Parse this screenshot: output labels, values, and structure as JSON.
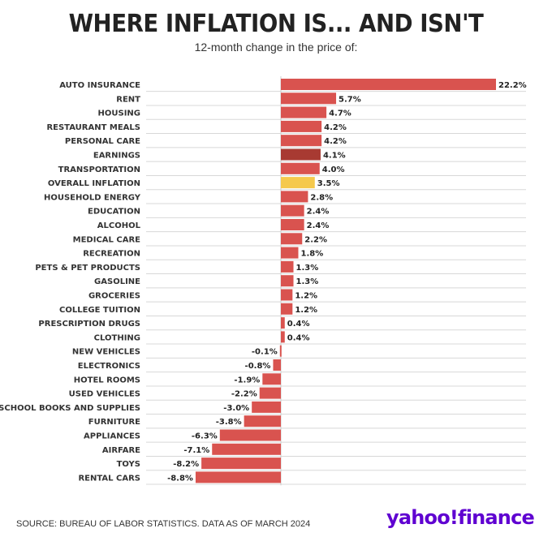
{
  "chart_data": {
    "type": "bar",
    "orientation": "horizontal",
    "title": "WHERE INFLATION IS... AND ISN'T",
    "subtitle": "12-month change in the price of:",
    "categories": [
      "AUTO INSURANCE",
      "RENT",
      "HOUSING",
      "RESTAURANT MEALS",
      "PERSONAL CARE",
      "EARNINGS",
      "TRANSPORTATION",
      "OVERALL INFLATION",
      "HOUSEHOLD ENERGY",
      "EDUCATION",
      "ALCOHOL",
      "MEDICAL CARE",
      "RECREATION",
      "PETS & PET PRODUCTS",
      "GASOLINE",
      "GROCERIES",
      "COLLEGE TUITION",
      "PRESCRIPTION DRUGS",
      "CLOTHING",
      "NEW VEHICLES",
      "ELECTRONICS",
      "HOTEL ROOMS",
      "USED VEHICLES",
      "SCHOOL BOOKS AND SUPPLIES",
      "FURNITURE",
      "APPLIANCES",
      "AIRFARE",
      "TOYS",
      "RENTAL CARS"
    ],
    "values": [
      22.2,
      5.7,
      4.7,
      4.2,
      4.2,
      4.1,
      4.0,
      3.5,
      2.8,
      2.4,
      2.4,
      2.2,
      1.8,
      1.3,
      1.3,
      1.2,
      1.2,
      0.4,
      0.4,
      -0.1,
      -0.8,
      -1.9,
      -2.2,
      -3.0,
      -3.8,
      -6.3,
      -7.1,
      -8.2,
      -8.8
    ],
    "value_labels": [
      "22.2%",
      "5.7%",
      "4.7%",
      "4.2%",
      "4.2%",
      "4.1%",
      "4.0%",
      "3.5%",
      "2.8%",
      "2.4%",
      "2.4%",
      "2.2%",
      "1.8%",
      "1.3%",
      "1.3%",
      "1.2%",
      "1.2%",
      "0.4%",
      "0.4%",
      "-0.1%",
      "-0.8%",
      "-1.9%",
      "-2.2%",
      "-3.0%",
      "-3.8%",
      "-6.3%",
      "-7.1%",
      "-8.2%",
      "-8.8%"
    ],
    "xlim": [
      -8.8,
      22.2
    ],
    "grid": "horizontal lines",
    "colors": {
      "default": "#d9534f",
      "highlight_earnings": "#a83a32",
      "highlight_overall": "#f5c94c",
      "grid": "#d8d8d8",
      "zero_axis": "#cccccc"
    },
    "highlight": {
      "EARNINGS": "highlight_earnings",
      "OVERALL INFLATION": "highlight_overall"
    }
  },
  "footer": {
    "source": "SOURCE: BUREAU OF LABOR STATISTICS. DATA AS OF MARCH 2024",
    "brand": "yahoo!finance"
  }
}
